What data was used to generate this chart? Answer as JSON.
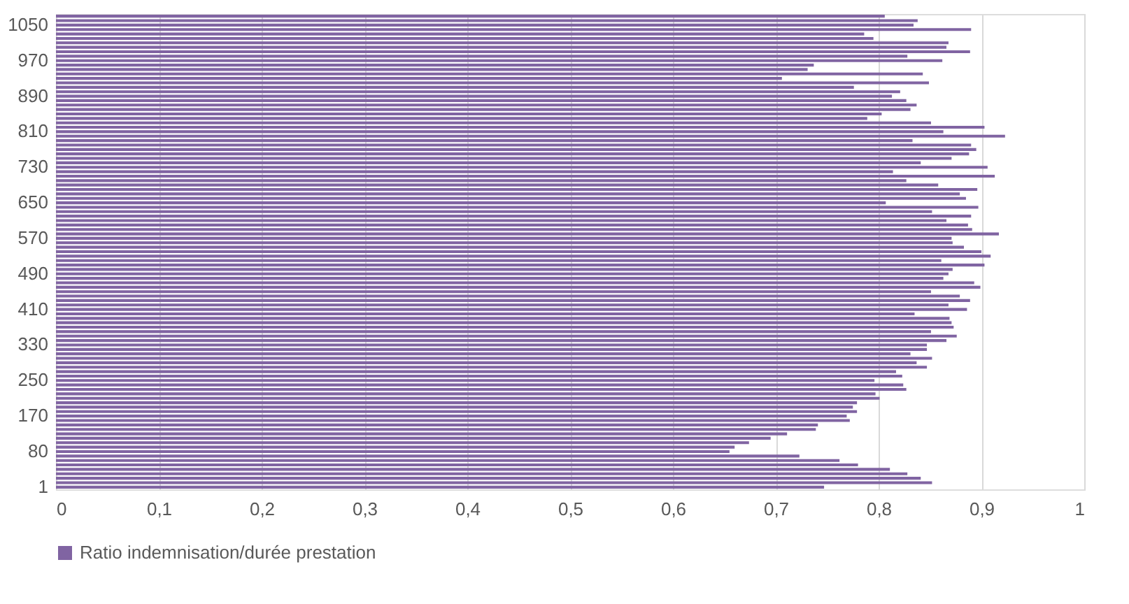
{
  "chart_data": {
    "type": "bar",
    "orientation": "horizontal",
    "categories": [
      null,
      null,
      "1050",
      null,
      null,
      null,
      null,
      null,
      null,
      null,
      "970",
      null,
      null,
      null,
      null,
      null,
      null,
      null,
      "890",
      null,
      null,
      null,
      null,
      null,
      null,
      null,
      "810",
      null,
      null,
      null,
      null,
      null,
      null,
      null,
      "730",
      null,
      null,
      null,
      null,
      null,
      null,
      null,
      "650",
      null,
      null,
      null,
      null,
      null,
      null,
      null,
      "570",
      null,
      null,
      null,
      null,
      null,
      null,
      null,
      "490",
      null,
      null,
      null,
      null,
      null,
      null,
      null,
      "410",
      null,
      null,
      null,
      null,
      null,
      null,
      null,
      "330",
      null,
      null,
      null,
      null,
      null,
      null,
      null,
      "250",
      null,
      null,
      null,
      null,
      null,
      null,
      null,
      "170",
      null,
      null,
      null,
      null,
      null,
      null,
      null,
      "80",
      null,
      null,
      null,
      null,
      null,
      null,
      null,
      "1"
    ],
    "series": [
      {
        "name": "Ratio indemnisation/durée prestation",
        "color": "#8064a2",
        "values": [
          0.806,
          0.838,
          0.834,
          0.89,
          0.786,
          0.795,
          0.868,
          0.866,
          0.889,
          0.828,
          0.862,
          0.737,
          0.731,
          0.843,
          0.706,
          0.849,
          0.776,
          0.821,
          0.813,
          0.827,
          0.837,
          0.831,
          0.803,
          0.789,
          0.851,
          0.903,
          0.863,
          0.923,
          0.833,
          0.89,
          0.895,
          0.888,
          0.871,
          0.841,
          0.906,
          0.814,
          0.913,
          0.827,
          0.858,
          0.896,
          0.879,
          0.885,
          0.807,
          0.897,
          0.852,
          0.89,
          0.866,
          0.887,
          0.891,
          0.917,
          0.871,
          0.872,
          0.883,
          0.9,
          0.909,
          0.861,
          0.903,
          0.872,
          0.868,
          0.863,
          0.893,
          0.899,
          0.851,
          0.879,
          0.889,
          0.868,
          0.886,
          0.835,
          0.869,
          0.871,
          0.873,
          0.851,
          0.876,
          0.866,
          0.847,
          0.847,
          0.831,
          0.852,
          0.837,
          0.847,
          0.817,
          0.823,
          0.796,
          0.824,
          0.827,
          0.797,
          0.801,
          0.779,
          0.775,
          0.779,
          0.769,
          0.772,
          0.741,
          0.739,
          0.711,
          0.695,
          0.674,
          0.66,
          0.655,
          0.723,
          0.762,
          0.78,
          0.811,
          0.828,
          0.841,
          0.852,
          0.747
        ]
      }
    ],
    "xlim": [
      0,
      1
    ],
    "xticks": [
      0,
      {
        "value": 0.1,
        "label": "0,1"
      },
      {
        "value": 0.2,
        "label": "0,2"
      },
      {
        "value": 0.3,
        "label": "0,3"
      },
      {
        "value": 0.4,
        "label": "0,4"
      },
      {
        "value": 0.5,
        "label": "0,5"
      },
      {
        "value": 0.6,
        "label": "0,6"
      },
      {
        "value": 0.7,
        "label": "0,7"
      },
      {
        "value": 0.8,
        "label": "0,8"
      },
      {
        "value": 0.9,
        "label": "0,9"
      },
      1
    ],
    "grid": "x",
    "legend": "bottom"
  }
}
